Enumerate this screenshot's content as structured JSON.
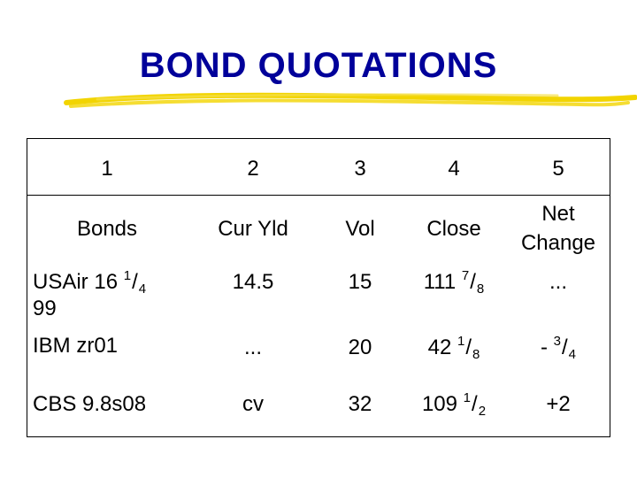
{
  "title": "BOND QUOTATIONS",
  "colors": {
    "title": "#00009a",
    "underline": "#f2d400"
  },
  "header": {
    "numbers": [
      "1",
      "2",
      "3",
      "4",
      "5"
    ],
    "labels": [
      "Bonds",
      "Cur Yld",
      "Vol",
      "Close"
    ],
    "net_change_line1": "Net",
    "net_change_line2": "Change"
  },
  "rows": [
    {
      "bond_main": "USAir 16",
      "bond_frac_num": "1",
      "bond_frac_den": "4",
      "bond_year": "99",
      "cur_yld": "14.5",
      "vol": "15",
      "close_whole": "111",
      "close_num": "7",
      "close_den": "8",
      "net": "..."
    },
    {
      "bond": "IBM zr01",
      "cur_yld": "...",
      "vol": "20",
      "close_whole": "42",
      "close_num": "1",
      "close_den": "8",
      "net_prefix": "-",
      "net_num": "3",
      "net_den": "4"
    },
    {
      "bond": "CBS 9.8s08",
      "cur_yld": "cv",
      "vol": "32",
      "close_whole": "109",
      "close_num": "1",
      "close_den": "2",
      "net": "+2"
    }
  ]
}
